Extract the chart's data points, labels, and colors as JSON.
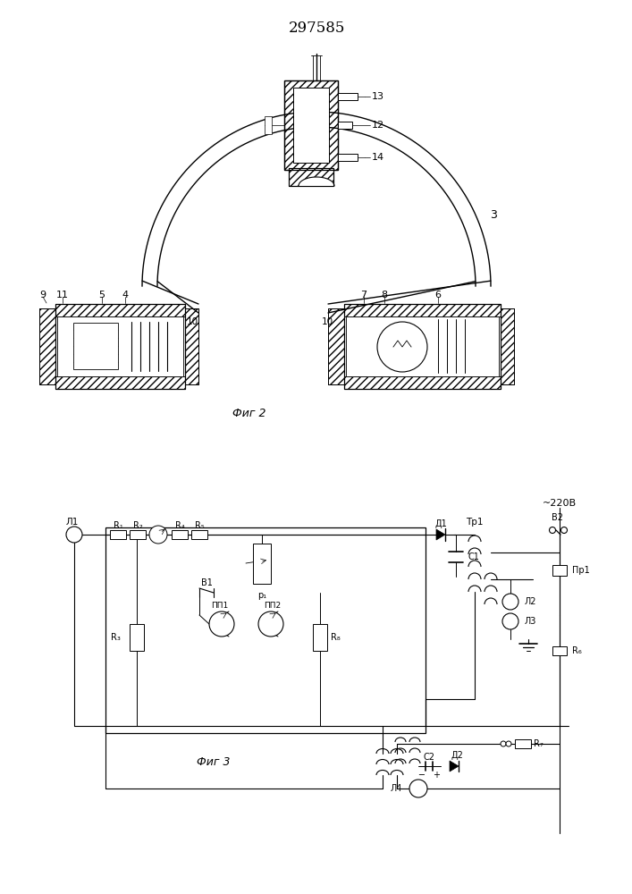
{
  "title": "297585",
  "fig2_label": "Фиг 2",
  "fig3_label": "Фиг 3",
  "bg_color": "#ffffff",
  "line_color": "#000000",
  "title_fontsize": 12,
  "label_fontsize": 8
}
